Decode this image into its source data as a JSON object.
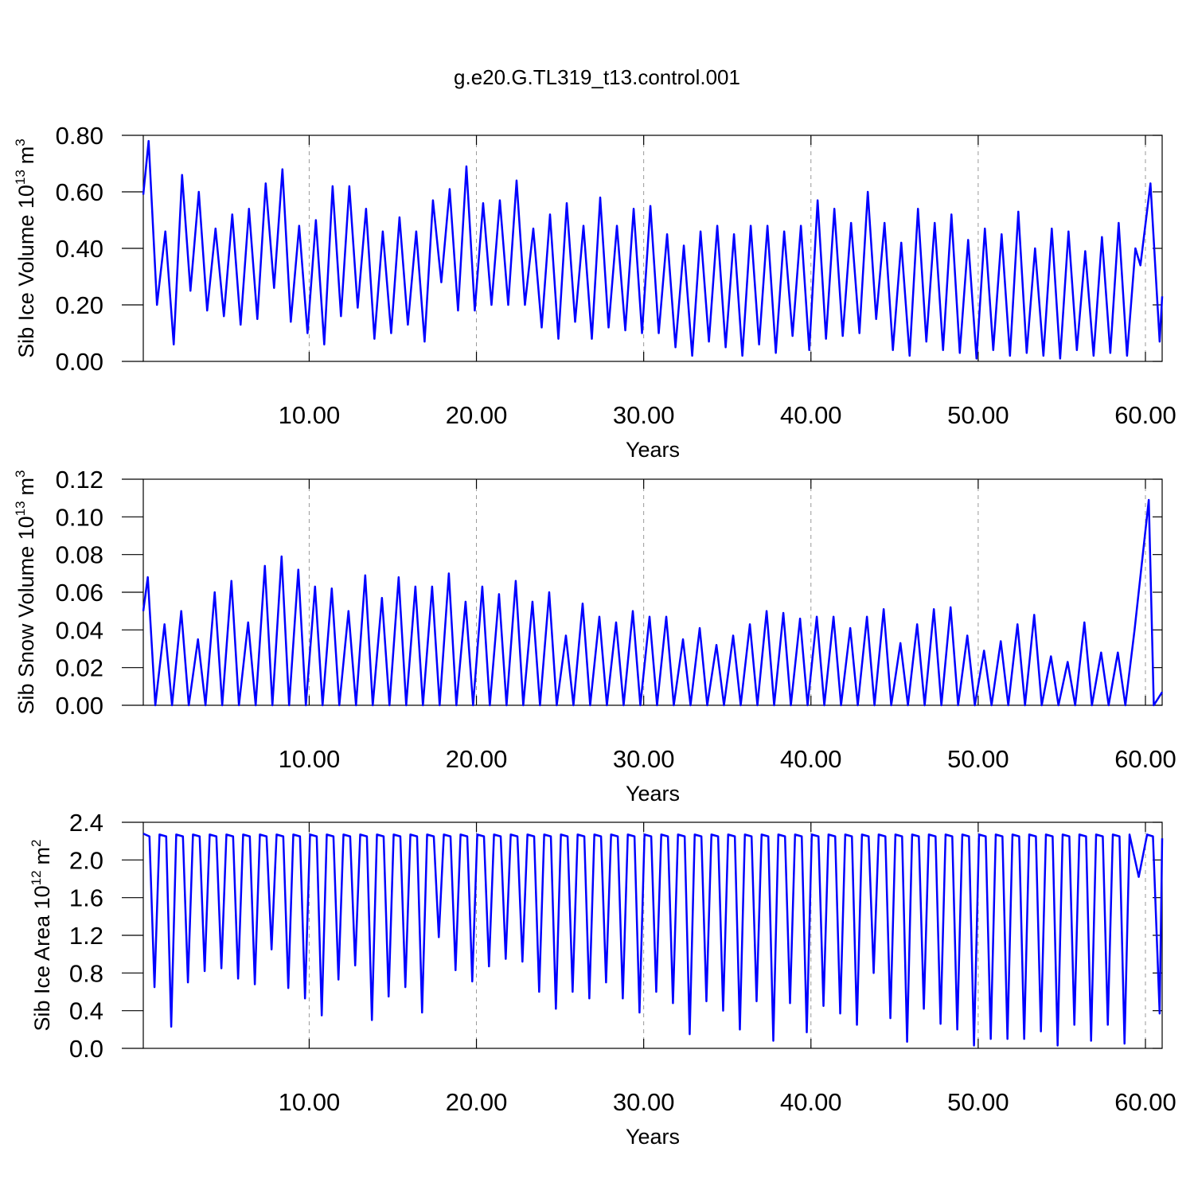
{
  "title": "g.e20.G.TL319_t13.control.001",
  "chart_data": [
    {
      "type": "line",
      "color": "#0000ff",
      "grid": true,
      "xlabel": "Years",
      "ylabel": "Sib Ice Volume 10",
      "ylabel_exp": "13",
      "ylabel_unit": "m",
      "ylabel_unit_exp": "3",
      "xlim": [
        0.08,
        61.0
      ],
      "ylim": [
        0,
        0.8
      ],
      "xticks": [
        {
          "value": 10,
          "label": "10.00"
        },
        {
          "value": 20,
          "label": "20.00"
        },
        {
          "value": 30,
          "label": "30.00"
        },
        {
          "value": 40,
          "label": "40.00"
        },
        {
          "value": 50,
          "label": "50.00"
        },
        {
          "value": 60,
          "label": "60.00"
        }
      ],
      "yticks": [
        {
          "value": 0,
          "label": "0.00"
        },
        {
          "value": 0.2,
          "label": "0.20"
        },
        {
          "value": 0.4,
          "label": "0.40"
        },
        {
          "value": 0.6,
          "label": "0.60"
        },
        {
          "value": 0.8,
          "label": "0.80"
        }
      ],
      "x": [
        0.08,
        0.4,
        0.9,
        1.4,
        1.9,
        2.4,
        2.9,
        3.4,
        3.9,
        4.4,
        4.9,
        5.4,
        5.9,
        6.4,
        6.9,
        7.4,
        7.9,
        8.4,
        8.9,
        9.4,
        9.9,
        10.4,
        10.9,
        11.4,
        11.9,
        12.4,
        12.9,
        13.4,
        13.9,
        14.4,
        14.9,
        15.4,
        15.9,
        16.4,
        16.9,
        17.4,
        17.9,
        18.4,
        18.9,
        19.4,
        19.9,
        20.4,
        20.9,
        21.4,
        21.9,
        22.4,
        22.9,
        23.4,
        23.9,
        24.4,
        24.9,
        25.4,
        25.9,
        26.4,
        26.9,
        27.4,
        27.9,
        28.4,
        28.9,
        29.4,
        29.9,
        30.4,
        30.9,
        31.4,
        31.9,
        32.4,
        32.9,
        33.4,
        33.9,
        34.4,
        34.9,
        35.4,
        35.9,
        36.4,
        36.9,
        37.4,
        37.9,
        38.4,
        38.9,
        39.4,
        39.9,
        40.4,
        40.9,
        41.4,
        41.9,
        42.4,
        42.9,
        43.4,
        43.9,
        44.4,
        44.9,
        45.4,
        45.9,
        46.4,
        46.9,
        47.4,
        47.9,
        48.4,
        48.9,
        49.4,
        49.9,
        50.4,
        50.9,
        51.4,
        51.9,
        52.4,
        52.9,
        53.4,
        53.9,
        54.4,
        54.9,
        55.4,
        55.9,
        56.4,
        56.9,
        57.4,
        57.9,
        58.4,
        58.9,
        59.4,
        59.7,
        60.3,
        60.85,
        61.0
      ],
      "values": [
        0.59,
        0.78,
        0.2,
        0.46,
        0.06,
        0.66,
        0.25,
        0.6,
        0.18,
        0.47,
        0.16,
        0.52,
        0.13,
        0.54,
        0.15,
        0.63,
        0.26,
        0.68,
        0.14,
        0.48,
        0.1,
        0.5,
        0.06,
        0.62,
        0.16,
        0.62,
        0.19,
        0.54,
        0.08,
        0.46,
        0.1,
        0.51,
        0.13,
        0.46,
        0.07,
        0.57,
        0.28,
        0.61,
        0.18,
        0.69,
        0.18,
        0.56,
        0.2,
        0.57,
        0.2,
        0.64,
        0.2,
        0.47,
        0.12,
        0.52,
        0.08,
        0.56,
        0.14,
        0.48,
        0.08,
        0.58,
        0.12,
        0.48,
        0.11,
        0.54,
        0.1,
        0.55,
        0.1,
        0.45,
        0.05,
        0.41,
        0.02,
        0.46,
        0.07,
        0.48,
        0.05,
        0.45,
        0.02,
        0.48,
        0.06,
        0.48,
        0.03,
        0.46,
        0.09,
        0.48,
        0.04,
        0.57,
        0.08,
        0.54,
        0.09,
        0.49,
        0.1,
        0.6,
        0.15,
        0.49,
        0.04,
        0.42,
        0.02,
        0.54,
        0.07,
        0.49,
        0.04,
        0.52,
        0.03,
        0.43,
        0.01,
        0.47,
        0.04,
        0.45,
        0.02,
        0.53,
        0.03,
        0.4,
        0.02,
        0.47,
        0.01,
        0.46,
        0.04,
        0.39,
        0.02,
        0.44,
        0.03,
        0.49,
        0.02,
        0.4,
        0.34,
        0.63,
        0.07,
        0.23
      ]
    },
    {
      "type": "line",
      "color": "#0000ff",
      "grid": true,
      "xlabel": "Years",
      "ylabel": "Sib Snow Volume 10",
      "ylabel_exp": "13",
      "ylabel_unit": "m",
      "ylabel_unit_exp": "3",
      "xlim": [
        0.08,
        61.0
      ],
      "ylim": [
        0,
        0.12
      ],
      "xticks": [
        {
          "value": 10,
          "label": "10.00"
        },
        {
          "value": 20,
          "label": "20.00"
        },
        {
          "value": 30,
          "label": "30.00"
        },
        {
          "value": 40,
          "label": "40.00"
        },
        {
          "value": 50,
          "label": "50.00"
        },
        {
          "value": 60,
          "label": "60.00"
        }
      ],
      "yticks": [
        {
          "value": 0,
          "label": "0.00"
        },
        {
          "value": 0.02,
          "label": "0.02"
        },
        {
          "value": 0.04,
          "label": "0.04"
        },
        {
          "value": 0.06,
          "label": "0.06"
        },
        {
          "value": 0.08,
          "label": "0.08"
        },
        {
          "value": 0.1,
          "label": "0.10"
        },
        {
          "value": 0.12,
          "label": "0.12"
        }
      ],
      "x": [
        0.08,
        0.35,
        0.8,
        1.35,
        1.8,
        2.35,
        2.8,
        3.35,
        3.8,
        4.35,
        4.8,
        5.35,
        5.8,
        6.35,
        6.8,
        7.35,
        7.8,
        8.35,
        8.8,
        9.35,
        9.8,
        10.35,
        10.8,
        11.35,
        11.8,
        12.35,
        12.8,
        13.35,
        13.8,
        14.35,
        14.8,
        15.35,
        15.8,
        16.35,
        16.8,
        17.35,
        17.8,
        18.35,
        18.8,
        19.35,
        19.8,
        20.35,
        20.8,
        21.35,
        21.8,
        22.35,
        22.8,
        23.35,
        23.8,
        24.35,
        24.8,
        25.35,
        25.8,
        26.35,
        26.8,
        27.35,
        27.8,
        28.35,
        28.8,
        29.35,
        29.8,
        30.35,
        30.8,
        31.35,
        31.8,
        32.35,
        32.8,
        33.35,
        33.8,
        34.35,
        34.8,
        35.35,
        35.8,
        36.35,
        36.8,
        37.35,
        37.8,
        38.35,
        38.8,
        39.35,
        39.8,
        40.35,
        40.8,
        41.35,
        41.8,
        42.35,
        42.8,
        43.35,
        43.8,
        44.35,
        44.8,
        45.35,
        45.8,
        46.35,
        46.8,
        47.35,
        47.8,
        48.35,
        48.8,
        49.35,
        49.8,
        50.35,
        50.8,
        51.35,
        51.8,
        52.35,
        52.8,
        53.35,
        53.8,
        54.35,
        54.8,
        55.35,
        55.8,
        56.35,
        56.8,
        57.35,
        57.8,
        58.35,
        58.8,
        59.35,
        60.2,
        60.5,
        61.0
      ],
      "values": [
        0.05,
        0.068,
        0,
        0.043,
        0,
        0.05,
        0,
        0.035,
        0,
        0.06,
        0,
        0.066,
        0,
        0.044,
        0,
        0.074,
        0,
        0.079,
        0,
        0.072,
        0,
        0.063,
        0,
        0.062,
        0,
        0.05,
        0,
        0.069,
        0,
        0.057,
        0,
        0.068,
        0,
        0.063,
        0,
        0.063,
        0,
        0.07,
        0,
        0.055,
        0,
        0.063,
        0,
        0.059,
        0,
        0.066,
        0,
        0.055,
        0,
        0.06,
        0,
        0.037,
        0,
        0.054,
        0,
        0.047,
        0,
        0.044,
        0,
        0.05,
        0,
        0.047,
        0,
        0.047,
        0,
        0.035,
        0,
        0.041,
        0,
        0.032,
        0,
        0.037,
        0,
        0.043,
        0,
        0.05,
        0,
        0.049,
        0,
        0.046,
        0,
        0.047,
        0,
        0.047,
        0,
        0.041,
        0,
        0.047,
        0,
        0.051,
        0,
        0.033,
        0,
        0.043,
        0,
        0.051,
        0,
        0.052,
        0,
        0.037,
        0,
        0.029,
        0,
        0.034,
        0,
        0.043,
        0,
        0.048,
        0,
        0.026,
        0,
        0.023,
        0,
        0.044,
        0,
        0.028,
        0,
        0.028,
        0,
        0.04,
        0.109,
        0,
        0.007
      ]
    },
    {
      "type": "line",
      "color": "#0000ff",
      "grid": true,
      "xlabel": "Years",
      "ylabel": "Sib Ice Area 10",
      "ylabel_exp": "12",
      "ylabel_unit": "m",
      "ylabel_unit_exp": "2",
      "xlim": [
        0.08,
        61.0
      ],
      "ylim": [
        0,
        2.4
      ],
      "xticks": [
        {
          "value": 10,
          "label": "10.00"
        },
        {
          "value": 20,
          "label": "20.00"
        },
        {
          "value": 30,
          "label": "30.00"
        },
        {
          "value": 40,
          "label": "40.00"
        },
        {
          "value": 50,
          "label": "50.00"
        },
        {
          "value": 60,
          "label": "60.00"
        }
      ],
      "yticks": [
        {
          "value": 0,
          "label": "0.0"
        },
        {
          "value": 0.4,
          "label": "0.4"
        },
        {
          "value": 0.8,
          "label": "0.8"
        },
        {
          "value": 1.2,
          "label": "1.2"
        },
        {
          "value": 1.6,
          "label": "1.6"
        },
        {
          "value": 2,
          "label": "2.0"
        },
        {
          "value": 2.4,
          "label": "2.4"
        }
      ],
      "x": [
        0.08,
        0.45,
        0.75,
        1.05,
        1.45,
        1.75,
        2.05,
        2.45,
        2.75,
        3.05,
        3.45,
        3.75,
        4.05,
        4.45,
        4.75,
        5.05,
        5.45,
        5.75,
        6.05,
        6.45,
        6.75,
        7.05,
        7.45,
        7.75,
        8.05,
        8.45,
        8.75,
        9.05,
        9.45,
        9.75,
        10.05,
        10.45,
        10.75,
        11.05,
        11.45,
        11.75,
        12.05,
        12.45,
        12.75,
        13.05,
        13.45,
        13.75,
        14.05,
        14.45,
        14.75,
        15.05,
        15.45,
        15.75,
        16.05,
        16.45,
        16.75,
        17.05,
        17.45,
        17.75,
        18.05,
        18.45,
        18.75,
        19.05,
        19.45,
        19.75,
        20.05,
        20.45,
        20.75,
        21.05,
        21.45,
        21.75,
        22.05,
        22.45,
        22.75,
        23.05,
        23.45,
        23.75,
        24.05,
        24.45,
        24.75,
        25.05,
        25.45,
        25.75,
        26.05,
        26.45,
        26.75,
        27.05,
        27.45,
        27.75,
        28.05,
        28.45,
        28.75,
        29.05,
        29.45,
        29.75,
        30.05,
        30.45,
        30.75,
        31.05,
        31.45,
        31.75,
        32.05,
        32.45,
        32.75,
        33.05,
        33.45,
        33.75,
        34.05,
        34.45,
        34.75,
        35.05,
        35.45,
        35.75,
        36.05,
        36.45,
        36.75,
        37.05,
        37.45,
        37.75,
        38.05,
        38.45,
        38.75,
        39.05,
        39.45,
        39.75,
        40.05,
        40.45,
        40.75,
        41.05,
        41.45,
        41.75,
        42.05,
        42.45,
        42.75,
        43.05,
        43.45,
        43.75,
        44.05,
        44.45,
        44.75,
        45.05,
        45.45,
        45.75,
        46.05,
        46.45,
        46.75,
        47.05,
        47.45,
        47.75,
        48.05,
        48.45,
        48.75,
        49.05,
        49.45,
        49.75,
        50.05,
        50.45,
        50.75,
        51.05,
        51.45,
        51.75,
        52.05,
        52.45,
        52.75,
        53.05,
        53.45,
        53.75,
        54.05,
        54.45,
        54.75,
        55.05,
        55.45,
        55.75,
        56.05,
        56.45,
        56.75,
        57.05,
        57.45,
        57.75,
        58.05,
        58.45,
        58.75,
        59.05,
        59.6,
        60.1,
        60.45,
        60.85,
        61.0
      ],
      "values": [
        2.28,
        2.25,
        0.65,
        2.27,
        2.25,
        0.23,
        2.27,
        2.25,
        0.7,
        2.27,
        2.25,
        0.82,
        2.27,
        2.25,
        0.85,
        2.27,
        2.25,
        0.74,
        2.27,
        2.25,
        0.68,
        2.27,
        2.25,
        1.05,
        2.27,
        2.25,
        0.64,
        2.27,
        2.25,
        0.53,
        2.27,
        2.25,
        0.35,
        2.27,
        2.25,
        0.73,
        2.27,
        2.25,
        0.88,
        2.27,
        2.25,
        0.3,
        2.27,
        2.25,
        0.55,
        2.27,
        2.25,
        0.65,
        2.27,
        2.25,
        0.38,
        2.27,
        2.25,
        1.18,
        2.27,
        2.25,
        0.83,
        2.27,
        2.25,
        0.71,
        2.27,
        2.25,
        0.87,
        2.27,
        2.25,
        0.95,
        2.27,
        2.25,
        0.92,
        2.27,
        2.25,
        0.6,
        2.27,
        2.25,
        0.42,
        2.27,
        2.25,
        0.6,
        2.27,
        2.25,
        0.53,
        2.27,
        2.25,
        0.7,
        2.27,
        2.25,
        0.53,
        2.27,
        2.25,
        0.38,
        2.27,
        2.25,
        0.6,
        2.27,
        2.25,
        0.48,
        2.27,
        2.25,
        0.15,
        2.27,
        2.25,
        0.5,
        2.27,
        2.25,
        0.4,
        2.27,
        2.25,
        0.2,
        2.27,
        2.25,
        0.5,
        2.27,
        2.25,
        0.08,
        2.27,
        2.25,
        0.48,
        2.27,
        2.25,
        0.17,
        2.27,
        2.25,
        0.45,
        2.27,
        2.25,
        0.37,
        2.27,
        2.25,
        0.25,
        2.27,
        2.25,
        0.8,
        2.27,
        2.25,
        0.32,
        2.27,
        2.25,
        0.07,
        2.27,
        2.25,
        0.42,
        2.27,
        2.25,
        0.26,
        2.27,
        2.25,
        0.2,
        2.27,
        2.25,
        0.03,
        2.27,
        2.25,
        0.1,
        2.27,
        2.25,
        0.1,
        2.27,
        2.25,
        0.1,
        2.27,
        2.25,
        0.18,
        2.27,
        2.25,
        0.03,
        2.27,
        2.25,
        0.25,
        2.27,
        2.25,
        0.08,
        2.27,
        2.25,
        0.25,
        2.27,
        2.25,
        0.05,
        2.27,
        1.82,
        2.27,
        2.25,
        0.37,
        2.23
      ]
    }
  ]
}
